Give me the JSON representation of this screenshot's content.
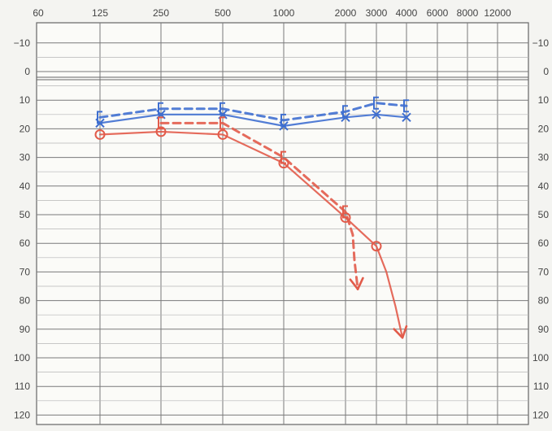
{
  "chart_data": {
    "type": "line",
    "x_scale": "log",
    "y_reversed": true,
    "x_ticks": [
      60,
      125,
      250,
      500,
      1000,
      2000,
      3000,
      4000,
      6000,
      8000,
      12000
    ],
    "x_tick_labels": [
      "60",
      "125",
      "250",
      "500",
      "1000",
      "2000",
      "3000",
      "4000",
      "6000",
      "8000",
      "12000"
    ],
    "y_ticks": [
      -10,
      0,
      10,
      20,
      30,
      40,
      50,
      60,
      70,
      80,
      90,
      100,
      110,
      120
    ],
    "y_tick_labels": [
      "−10",
      "0",
      "10",
      "20",
      "30",
      "40",
      "50",
      "60",
      "70",
      "80",
      "90",
      "100",
      "110",
      "120"
    ],
    "ylim": [
      -15,
      123
    ],
    "grid": true,
    "colors": {
      "left": "#3f6fd0",
      "right": "#e25b4a"
    },
    "series": [
      {
        "id": "left_air",
        "symbol": "x",
        "style": "solid",
        "color": "#3f6fd0",
        "points": [
          [
            125,
            18
          ],
          [
            250,
            15
          ],
          [
            500,
            15
          ],
          [
            1000,
            19
          ],
          [
            2000,
            16
          ],
          [
            3000,
            15
          ],
          [
            4000,
            16
          ]
        ]
      },
      {
        "id": "left_bone",
        "symbol": "bracket",
        "style": "dashed",
        "color": "#3f6fd0",
        "points": [
          [
            125,
            16
          ],
          [
            250,
            13
          ],
          [
            500,
            13
          ],
          [
            1000,
            17
          ],
          [
            2000,
            14
          ],
          [
            3000,
            11
          ],
          [
            4000,
            12
          ]
        ]
      },
      {
        "id": "right_air",
        "symbol": "o",
        "style": "solid",
        "color": "#e25b4a",
        "points": [
          [
            125,
            22
          ],
          [
            250,
            21
          ],
          [
            500,
            22
          ],
          [
            1000,
            32
          ],
          [
            2000,
            51
          ],
          [
            3000,
            61
          ]
        ],
        "tail": [
          [
            3300,
            70
          ],
          [
            3600,
            82
          ],
          [
            3850,
            93
          ]
        ]
      },
      {
        "id": "right_bone",
        "symbol": "bracket",
        "style": "dashed",
        "color": "#e25b4a",
        "points": [
          [
            250,
            18
          ],
          [
            500,
            18
          ],
          [
            1000,
            30
          ],
          [
            2000,
            49
          ]
        ],
        "tail": [
          [
            2200,
            57
          ],
          [
            2250,
            66
          ],
          [
            2350,
            76
          ]
        ]
      }
    ]
  }
}
